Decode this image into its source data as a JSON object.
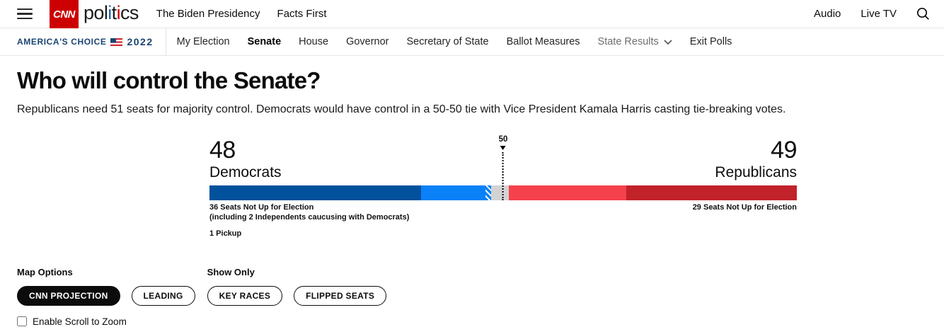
{
  "colors": {
    "cnn-red": "#cc0000",
    "brand-blue": "#1e62ad",
    "navy-text": "#1a4472",
    "dem-solid": "#02519d",
    "dem-lead": "#0a81f7",
    "uncalled-gray": "#d3d3d3",
    "rep-lead": "#f5414b",
    "rep-solid": "#c2222a",
    "border-gray": "#e6e6e6",
    "text-dark": "#0c0c0c",
    "muted-gray": "#6e6e6e"
  },
  "header": {
    "logo": {
      "cnn": "CNN",
      "letters": [
        {
          "ch": "p"
        },
        {
          "ch": "o"
        },
        {
          "ch": "l"
        },
        {
          "ch": "i",
          "color": "#1e62ad"
        },
        {
          "ch": "t"
        },
        {
          "ch": "i",
          "color": "#cc0000"
        },
        {
          "ch": "c"
        },
        {
          "ch": "s"
        }
      ]
    },
    "links": [
      "The Biden Presidency",
      "Facts First"
    ],
    "right_links": [
      "Audio",
      "Live TV"
    ]
  },
  "election_nav": {
    "brand": {
      "title": "AMERICA'S CHOICE",
      "year": "2022"
    },
    "items": [
      {
        "label": "My Election",
        "active": false
      },
      {
        "label": "Senate",
        "active": true
      },
      {
        "label": "House",
        "active": false
      },
      {
        "label": "Governor",
        "active": false
      },
      {
        "label": "Secretary of State",
        "active": false
      },
      {
        "label": "Ballot Measures",
        "active": false
      },
      {
        "label": "State Results",
        "active": false,
        "dropdown": true
      },
      {
        "label": "Exit Polls",
        "active": false
      }
    ]
  },
  "main": {
    "title": "Who will control the Senate?",
    "subtitle": "Republicans need 51 seats for majority control. Democrats would have control in a 50-50 tie with Vice President Kamala Harris casting tie-breaking votes."
  },
  "chart_data": {
    "type": "bar",
    "title": "Who will control the Senate?",
    "total_seats": 100,
    "majority_needed": 51,
    "democrats": {
      "count": "48",
      "label": "Democrats",
      "note_line1": "36 Seats Not Up for Election",
      "note_line2": "(including 2 Independents caucusing with Democrats)",
      "pickup_note": "1 Pickup"
    },
    "republicans": {
      "count": "49",
      "label": "Republicans",
      "note": "29 Seats Not Up for Election"
    },
    "marker": {
      "label": "50",
      "position_pct": 50
    },
    "segments": [
      {
        "name": "dem-not-up-for-election",
        "seats": 36,
        "color": "#02519d",
        "hatched": false
      },
      {
        "name": "dem-projected",
        "seats": 11,
        "color": "#0a81f7",
        "hatched": false
      },
      {
        "name": "dem-pickup",
        "seats": 1,
        "color": "#0a81f7",
        "hatched": true
      },
      {
        "name": "uncalled",
        "seats": 3,
        "color": "#d3d3d3",
        "hatched": false
      },
      {
        "name": "rep-projected",
        "seats": 20,
        "color": "#f5414b",
        "hatched": false
      },
      {
        "name": "rep-not-up-for-election",
        "seats": 29,
        "color": "#c2222a",
        "hatched": false
      }
    ]
  },
  "controls": {
    "map_options": {
      "label": "Map Options",
      "buttons": [
        {
          "label": "CNN PROJECTION",
          "active": true
        },
        {
          "label": "LEADING",
          "active": false
        }
      ]
    },
    "show_only": {
      "label": "Show Only",
      "buttons": [
        {
          "label": "KEY RACES",
          "active": false
        },
        {
          "label": "FLIPPED SEATS",
          "active": false
        }
      ]
    },
    "zoom_checkbox": {
      "label": "Enable Scroll to Zoom",
      "checked": false
    }
  }
}
